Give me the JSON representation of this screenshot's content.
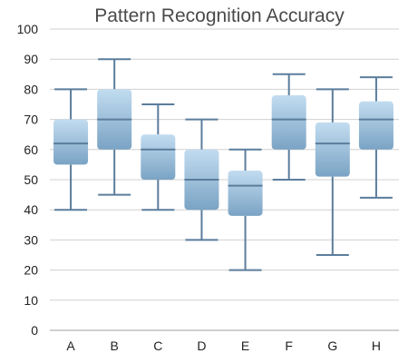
{
  "chart_data": {
    "type": "box",
    "title": "Pattern Recognition Accuracy",
    "xlabel": "",
    "ylabel": "",
    "ylim": [
      0,
      100
    ],
    "yticks": [
      0,
      10,
      20,
      30,
      40,
      50,
      60,
      70,
      80,
      90,
      100
    ],
    "grid": true,
    "legend": "none",
    "colors": {
      "box_top": "#c2dcf0",
      "box_bottom": "#7aa3c4",
      "line": "#5b7d9c"
    },
    "categories": [
      "A",
      "B",
      "C",
      "D",
      "E",
      "F",
      "G",
      "H"
    ],
    "boxes": [
      {
        "label": "A",
        "min": 40,
        "q1": 55,
        "median": 62,
        "q3": 70,
        "max": 80
      },
      {
        "label": "B",
        "min": 45,
        "q1": 60,
        "median": 70,
        "q3": 80,
        "max": 90
      },
      {
        "label": "C",
        "min": 40,
        "q1": 50,
        "median": 60,
        "q3": 65,
        "max": 75
      },
      {
        "label": "D",
        "min": 30,
        "q1": 40,
        "median": 50,
        "q3": 60,
        "max": 70
      },
      {
        "label": "E",
        "min": 20,
        "q1": 38,
        "median": 48,
        "q3": 53,
        "max": 60
      },
      {
        "label": "F",
        "min": 50,
        "q1": 60,
        "median": 70,
        "q3": 78,
        "max": 85
      },
      {
        "label": "G",
        "min": 25,
        "q1": 51,
        "median": 62,
        "q3": 69,
        "max": 80
      },
      {
        "label": "H",
        "min": 44,
        "q1": 60,
        "median": 70,
        "q3": 76,
        "max": 84
      }
    ]
  }
}
